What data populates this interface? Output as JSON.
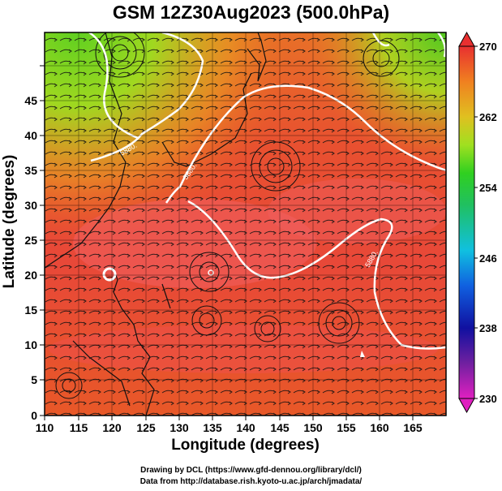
{
  "title": "GSM 12Z30Aug2023 (500.0hPa)",
  "x_axis": {
    "label": "Longitude (degrees)",
    "ticks": [
      "110",
      "115",
      "120",
      "125",
      "130",
      "135",
      "140",
      "145",
      "150",
      "155",
      "160",
      "165"
    ]
  },
  "y_axis": {
    "label": "Latitude  (degrees)",
    "ticks": [
      "0",
      "5",
      "10",
      "15",
      "20",
      "25",
      "30",
      "35",
      "40",
      "45"
    ]
  },
  "colorbar": {
    "ticks": [
      "230",
      "238",
      "246",
      "254",
      "262",
      "270"
    ],
    "min": 230,
    "max": 270,
    "colors": [
      "#e020c0",
      "#7020a0",
      "#1010a0",
      "#1060e0",
      "#10c0e0",
      "#20c060",
      "#30d020",
      "#a0e020",
      "#e0c020",
      "#f08020",
      "#e83030"
    ]
  },
  "contour_labels": [
    "5880.",
    "5880.",
    "5880."
  ],
  "credits": {
    "line1": "Drawing by DCL (https://www.gfd-dennou.org/library/dcl/)",
    "line2": "Data from http://database.rish.kyoto-u.ac.jp/arch/jmadata/"
  }
}
